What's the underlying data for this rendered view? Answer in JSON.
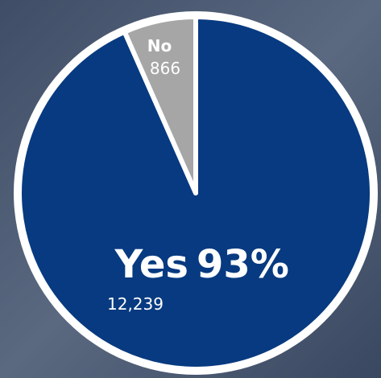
{
  "chart_data": {
    "type": "pie",
    "categories": [
      "Yes",
      "No"
    ],
    "values": [
      12239,
      866
    ],
    "value_labels": [
      "12,239",
      "866"
    ],
    "colors": [
      "#073a80",
      "#a6a6a6"
    ],
    "annotations": [
      {
        "value": 93,
        "label": "93%"
      }
    ]
  }
}
